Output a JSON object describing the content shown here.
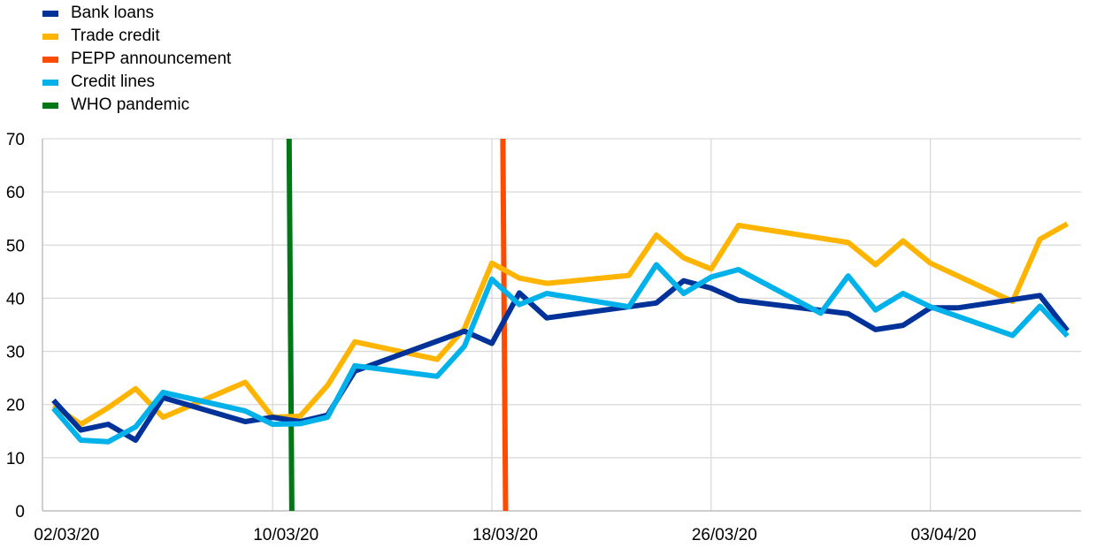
{
  "chart_data": {
    "type": "line",
    "title": "",
    "xlabel": "",
    "ylabel": "",
    "ylim": [
      0,
      70
    ],
    "yticks": [
      0,
      10,
      20,
      30,
      40,
      50,
      60,
      70
    ],
    "x_ticks": [
      {
        "day": 0,
        "label": "02/03/20"
      },
      {
        "day": 8,
        "label": "10/03/20"
      },
      {
        "day": 16,
        "label": "18/03/20"
      },
      {
        "day": 24,
        "label": "26/03/20"
      },
      {
        "day": 32,
        "label": "03/04/20"
      }
    ],
    "xlim": [
      -0.4,
      37.5
    ],
    "grid": true,
    "legend_position": "top-left",
    "legend": [
      {
        "name": "Bank loans",
        "color": "#003299"
      },
      {
        "name": "Trade credit",
        "color": "#FFB400"
      },
      {
        "name": "PEPP announcement",
        "color": "#FF4B00"
      },
      {
        "name": "Credit lines",
        "color": "#00B1EA"
      },
      {
        "name": "WHO pandemic",
        "color": "#007816"
      }
    ],
    "vlines": [
      {
        "name": "WHO pandemic",
        "x_top": 8.6,
        "x_bottom": 8.7,
        "color": "#007816"
      },
      {
        "name": "PEPP announcement",
        "x_top": 16.4,
        "x_bottom": 16.5,
        "color": "#FF4B00"
      }
    ],
    "series": [
      {
        "name": "Bank loans",
        "color": "#003299",
        "x": [
          0,
          1,
          2,
          3,
          4,
          7,
          8,
          9,
          10,
          11,
          15,
          16,
          17,
          18,
          22,
          23,
          24,
          25,
          29,
          30,
          31,
          32,
          33,
          36,
          37
        ],
        "y": [
          20.8,
          15.2,
          16.3,
          13.3,
          21.3,
          16.8,
          17.6,
          16.8,
          18.0,
          26.3,
          33.8,
          31.5,
          41.0,
          36.3,
          39.1,
          43.3,
          41.9,
          39.6,
          37.1,
          34.1,
          34.9,
          38.2,
          38.2,
          40.5,
          33.9
        ]
      },
      {
        "name": "Trade credit",
        "color": "#FFB400",
        "x": [
          0,
          1,
          2,
          3,
          4,
          7,
          8,
          9,
          10,
          11,
          14,
          15,
          16,
          17,
          18,
          21,
          22,
          23,
          24,
          25,
          29,
          30,
          31,
          32,
          35,
          36,
          37
        ],
        "y": [
          19.8,
          16.3,
          19.4,
          23.0,
          17.6,
          24.2,
          17.6,
          17.8,
          23.6,
          31.8,
          28.5,
          34.3,
          46.6,
          43.8,
          42.8,
          44.3,
          51.9,
          47.6,
          45.5,
          53.7,
          50.5,
          46.3,
          50.8,
          46.6,
          39.4,
          51.1,
          54.0
        ]
      },
      {
        "name": "Credit lines",
        "color": "#00B1EA",
        "x": [
          0,
          1,
          2,
          3,
          4,
          7,
          8,
          9,
          10,
          11,
          14,
          15,
          16,
          17,
          18,
          21,
          22,
          23,
          24,
          25,
          28,
          29,
          30,
          31,
          32,
          35,
          36,
          37
        ],
        "y": [
          19.3,
          13.3,
          13.0,
          15.8,
          22.3,
          18.8,
          16.3,
          16.4,
          17.6,
          27.3,
          25.3,
          31.0,
          43.6,
          38.8,
          40.9,
          38.4,
          46.3,
          40.9,
          44.0,
          45.4,
          37.2,
          44.2,
          37.8,
          40.9,
          38.4,
          33.0,
          38.5,
          32.9
        ]
      }
    ]
  }
}
